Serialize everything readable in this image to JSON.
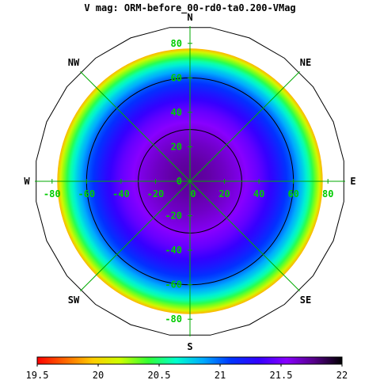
{
  "chart_data": {
    "type": "heatmap",
    "projection": "polar-sky",
    "title": "V mag: ORM-before_00-rd0-ta0.200-VMag",
    "compass": {
      "n": "N",
      "ne": "NE",
      "e": "E",
      "se": "SE",
      "s": "S",
      "sw": "SW",
      "w": "W",
      "nw": "NW"
    },
    "x_ticks": [
      -80,
      -60,
      -40,
      -20,
      0,
      20,
      40,
      60,
      80
    ],
    "y_ticks": [
      80,
      60,
      40,
      20,
      0,
      -20,
      -40,
      -60,
      -80
    ],
    "zenith_angle_range": [
      0,
      90
    ],
    "contour_circles_deg": [
      30,
      60
    ],
    "data_extent_deg": 77,
    "field": {
      "description_of_gradient": "brightness vs zenith angle",
      "zenith_deg": [
        0,
        10,
        20,
        30,
        40,
        50,
        60,
        65,
        70,
        75,
        77
      ],
      "vmag": [
        21.75,
        21.72,
        21.66,
        21.58,
        21.45,
        21.25,
        21.0,
        20.8,
        20.55,
        20.15,
        19.9
      ]
    },
    "colorbar": {
      "min": 19.5,
      "max": 22,
      "tick_values": [
        19.5,
        20,
        20.5,
        21,
        21.5,
        22
      ],
      "tick_labels": [
        "19.5",
        "20",
        "20.5",
        "21",
        "21.5",
        "22"
      ],
      "colors": [
        "#ff0000",
        "#ff6600",
        "#ffcc00",
        "#ccff00",
        "#33ff33",
        "#00ffcc",
        "#00aaff",
        "#0033ff",
        "#3300ff",
        "#8800ff",
        "#550088",
        "#000000"
      ]
    },
    "colors": {
      "grid": "#00aa00",
      "tick_labels": "#00cc00",
      "contours": "#000000"
    }
  }
}
